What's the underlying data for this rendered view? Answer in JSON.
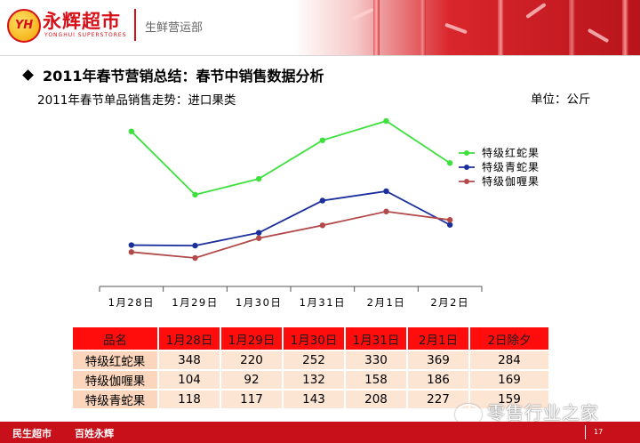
{
  "header": {
    "logo_text": "YH",
    "brand": "永辉超市",
    "brand_sub": "YONGHUI SUPERSTORES",
    "department": "生鲜营运部"
  },
  "title": "2011年春节营销总结：春节中销售数据分析",
  "subtitle": "2011年春节单品销售走势：进口果类",
  "unit": "单位：公斤",
  "chart_data": {
    "type": "line",
    "categories": [
      "1月28日",
      "1月29日",
      "1月30日",
      "1月31日",
      "2月1日",
      "2月2日"
    ],
    "series": [
      {
        "name": "特级红蛇果",
        "values": [
          348,
          220,
          252,
          330,
          369,
          284
        ],
        "color": "#3ee03e"
      },
      {
        "name": "特级青蛇果",
        "values": [
          118,
          117,
          143,
          208,
          227,
          159
        ],
        "color": "#1b2f9c"
      },
      {
        "name": "特级伽喱果",
        "values": [
          104,
          92,
          132,
          158,
          186,
          169
        ],
        "color": "#b34a4a"
      }
    ],
    "legend_position": "right",
    "grid": false
  },
  "table": {
    "headers": [
      "品名",
      "1月28日",
      "1月29日",
      "1月30日",
      "1月31日",
      "2月1日",
      "2日除夕"
    ],
    "rows": [
      [
        "特级红蛇果",
        "348",
        "220",
        "252",
        "330",
        "369",
        "284"
      ],
      [
        "特级伽喱果",
        "104",
        "92",
        "132",
        "158",
        "186",
        "169"
      ],
      [
        "特级青蛇果",
        "118",
        "117",
        "143",
        "208",
        "227",
        "159"
      ]
    ]
  },
  "footer": {
    "left": "民生超市",
    "right": "百姓永辉",
    "page": "17"
  },
  "watermark": "零售行业之家",
  "colors": {
    "brand_red": "#d70f18",
    "header_red": "#ff0d0d",
    "cell_bg": "#fde5d4"
  }
}
